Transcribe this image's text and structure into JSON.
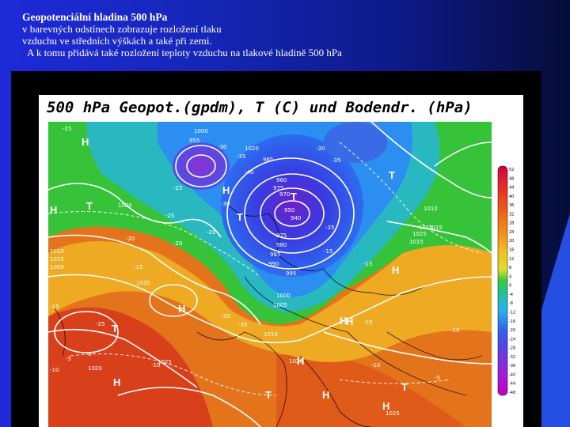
{
  "slide": {
    "title": "Geopotenciální hladina 500 hPa",
    "line1": "v barevných odstínech zobrazuje rozložení tlaku",
    "line2": "vzduchu ve středních výškách a také při zemi.",
    "line3": "A k tomu přidává také rozložení teploty vzduchu na tlakové hladině 500 hPa"
  },
  "map": {
    "title": "500 hPa Geopot.(gpdm), T (C) und Bodendr. (hPa)",
    "pressure_labels": [
      "1000",
      "955",
      "1020",
      "965",
      "960",
      "975",
      "970",
      "950",
      "940",
      "975",
      "980",
      "985",
      "990",
      "995",
      "1000",
      "1005",
      "1010",
      "1015",
      "1020",
      "1025",
      "1010",
      "1015",
      "1020",
      "1010",
      "1015",
      "1020",
      "1025",
      "1020",
      "1000",
      "1015",
      "1025"
    ],
    "temp_labels": [
      "-25",
      "-30",
      "-35",
      "-40",
      "-35",
      "-30",
      "-25",
      "-20",
      "-15",
      "-10",
      "-5",
      "-15",
      "-20",
      "-25",
      "-30",
      "-35",
      "-10",
      "-15",
      "-20",
      "-5",
      "-10",
      "-15",
      "-25",
      "-30",
      "-20",
      "-15",
      "-10",
      "-5"
    ],
    "high_low_marks": [
      "H",
      "H",
      "H",
      "T",
      "T",
      "T",
      "T",
      "H",
      "H",
      "H",
      "H",
      "T",
      "H",
      "H",
      "T",
      "T",
      "H",
      "H"
    ],
    "scale_ticks": [
      "52",
      "48",
      "44",
      "40",
      "36",
      "32",
      "28",
      "24",
      "20",
      "16",
      "12",
      "8",
      "4",
      "0",
      "-4",
      "-8",
      "-12",
      "-16",
      "-20",
      "-24",
      "-28",
      "-32",
      "-36",
      "-40",
      "-44",
      "-48"
    ]
  }
}
